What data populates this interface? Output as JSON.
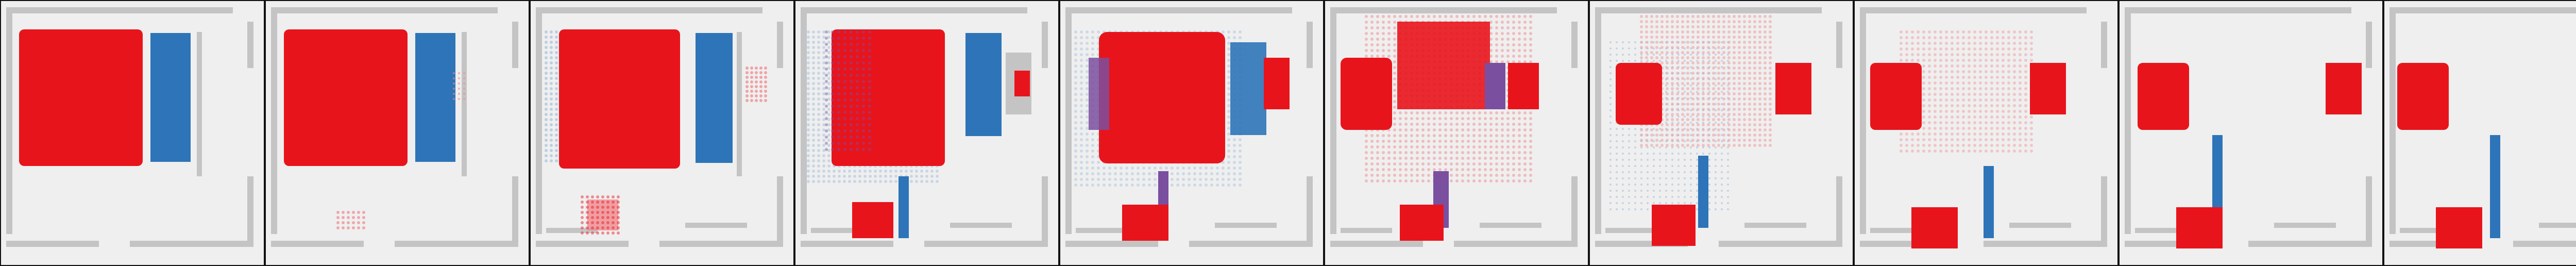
{
  "sequence": {
    "frame_count": 10,
    "colors": {
      "background": "#efefef",
      "wall": "#c4c4c4",
      "wall_dark": "#8f8f8f",
      "red_object": "#e8141c",
      "blue_object": "#2e74b8",
      "purple_overlap": "#7a4fa0",
      "red_trace": "#f08a8e",
      "blue_trace": "#9cbad8"
    },
    "object_names": [
      "red-block-object",
      "blue-block-object",
      "wall-structure",
      "particle-trail"
    ]
  }
}
